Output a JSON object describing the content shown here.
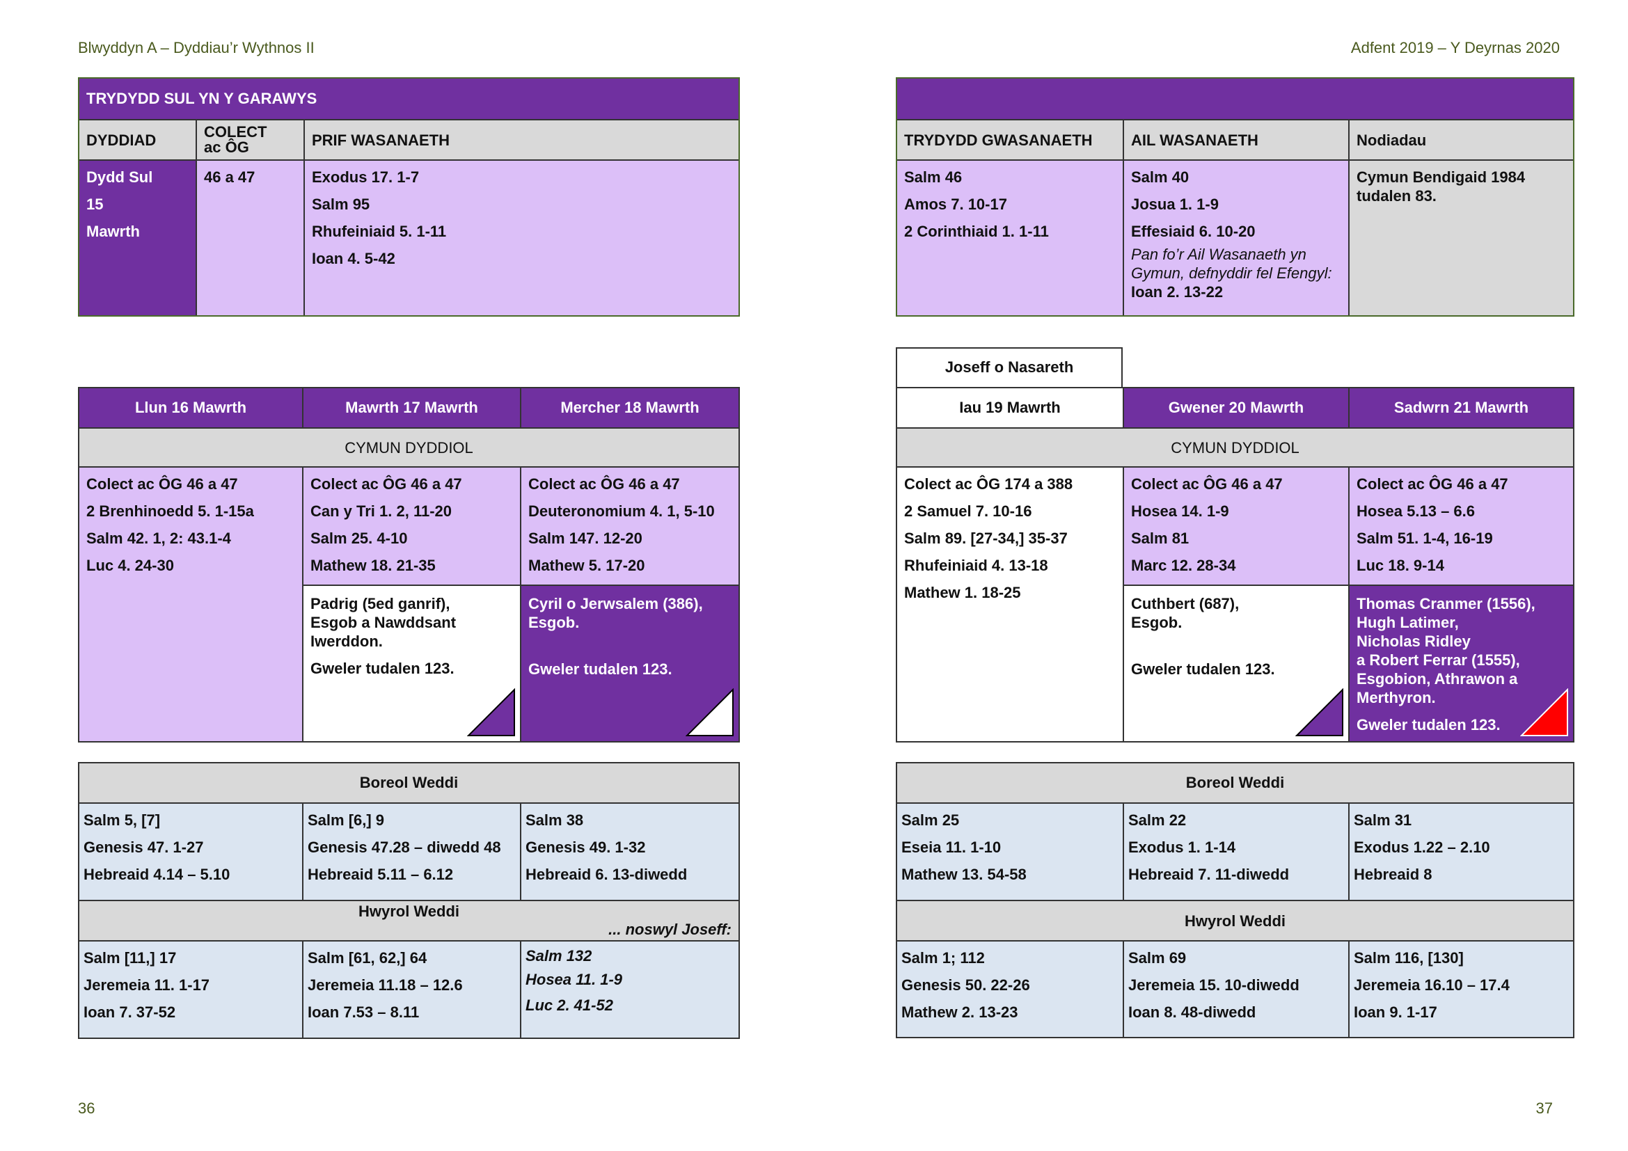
{
  "header": {
    "left": "Blwyddyn A – Dyddiau’r Wythnos II",
    "right": "Adfent 2019 – Y Deyrnas 2020"
  },
  "page_numbers": {
    "left": "36",
    "right": "37"
  },
  "colors": {
    "purple": "#7030a0",
    "lilac": "#dcbff8",
    "grey": "#d9d9d9",
    "blue": "#dbe5f1",
    "red": "#ff0000"
  },
  "sunday": {
    "title": "TRYDYDD SUL YN Y GARAWYS",
    "cols": {
      "day": "DYDDIAD",
      "collect_1": "COLECT",
      "collect_2": "ac ÔG",
      "main": "PRIF WASANAETH"
    },
    "day": [
      "Dydd Sul",
      "15",
      "Mawrth"
    ],
    "collect": "46 a 47",
    "main": [
      "Exodus 17. 1-7",
      "Salm 95",
      "Rhufeiniaid 5. 1-11",
      "Ioan 4. 5-42"
    ]
  },
  "sunday_right": {
    "cols": {
      "third": "TRYDYDD GWASANAETH",
      "second": "AIL WASANAETH",
      "notes": "Nodiadau"
    },
    "third": [
      "Salm 46",
      "Amos 7. 10-17",
      "2 Corinthiaid 1. 1-11"
    ],
    "second": [
      "Salm 40",
      "Josua 1. 1-9",
      "Effesiaid 6. 10-20"
    ],
    "second_note": [
      "Pan fo’r Ail Wasanaeth yn",
      "Gymun, defnyddir fel Efengyl:"
    ],
    "second_note_reading": "Ioan 2. 13-22",
    "notes": [
      "Cymun Bendigaid 1984",
      "tudalen 83."
    ]
  },
  "week_left": {
    "days": [
      "Llun 16 Mawrth",
      "Mawrth 17 Mawrth",
      "Mercher 18 Mawrth"
    ],
    "section": "CYMUN DYDDIOL",
    "readings": [
      [
        "Colect ac ÔG 46 a 47",
        "2 Brenhinoedd 5. 1-15a",
        "Salm 42. 1, 2: 43.1-4",
        "Luc 4. 24-30"
      ],
      [
        "Colect ac ÔG 46 a 47",
        "Can y Tri 1. 2, 11-20",
        "Salm 25. 4-10",
        "Mathew 18. 21-35"
      ],
      [
        "Colect ac ÔG 46 a 47",
        "Deuteronomium 4. 1, 5-10",
        "Salm 147. 12-20",
        "Mathew 5. 17-20"
      ]
    ],
    "commem_mawrth": [
      "Padrig (5ed ganrif),",
      "Esgob a Nawddsant",
      "Iwerddon."
    ],
    "commem_mawrth_see": "Gweler tudalen 123.",
    "commem_mercher": [
      "Cyril o Jerwsalem (386),",
      "Esgob."
    ],
    "commem_mercher_see": "Gweler tudalen 123."
  },
  "week_right": {
    "feast": "Joseff o Nasareth",
    "days": [
      "Iau 19 Mawrth",
      "Gwener 20 Mawrth",
      "Sadwrn 21 Mawrth"
    ],
    "section": "CYMUN DYDDIOL",
    "readings": [
      [
        "Colect ac ÔG 174 a 388",
        "2 Samuel 7. 10-16",
        "Salm 89. [27-34,] 35-37",
        "Rhufeiniaid 4. 13-18",
        "Mathew 1. 18-25"
      ],
      [
        "Colect ac ÔG 46 a 47",
        "Hosea 14. 1-9",
        "Salm 81",
        "Marc 12. 28-34"
      ],
      [
        "Colect ac ÔG 46 a 47",
        "Hosea 5.13 – 6.6",
        "Salm 51. 1-4, 16-19",
        "Luc 18. 9-14"
      ]
    ],
    "commem_gwener": [
      "Cuthbert (687),",
      "Esgob."
    ],
    "commem_gwener_see": "Gweler tudalen 123.",
    "commem_sadwrn": [
      "Thomas Cranmer (1556),",
      "Hugh Latimer,",
      "Nicholas Ridley",
      "a Robert Ferrar (1555),",
      "Esgobion, Athrawon a",
      "Merthyron."
    ],
    "commem_sadwrn_see": "Gweler tudalen 123."
  },
  "prayers_left": {
    "morning": "Boreol Weddi",
    "morning_cells": [
      [
        "Salm 5, [7]",
        "Genesis 47. 1-27",
        "Hebreaid 4.14 – 5.10"
      ],
      [
        "Salm [6,] 9",
        "Genesis 47.28 – diwedd 48",
        "Hebreaid 5.11 – 6.12"
      ],
      [
        "Salm 38",
        "Genesis 49. 1-32",
        "Hebreaid 6. 13-diwedd"
      ]
    ],
    "evening": "Hwyrol Weddi",
    "evening_note": "... noswyl Joseff:",
    "evening_cells": [
      [
        "Salm [11,] 17",
        "Jeremeia 11. 1-17",
        "Ioan 7. 37-52"
      ],
      [
        "Salm [61, 62,] 64",
        "Jeremeia 11.18 – 12.6",
        "Ioan 7.53 – 8.11"
      ],
      [
        "Salm 132",
        "Hosea 11. 1-9",
        "Luc 2. 41-52"
      ]
    ]
  },
  "prayers_right": {
    "morning": "Boreol Weddi",
    "morning_cells": [
      [
        "Salm 25",
        "Eseia 11. 1-10",
        "Mathew 13. 54-58"
      ],
      [
        "Salm 22",
        "Exodus 1. 1-14",
        "Hebreaid 7. 11-diwedd"
      ],
      [
        "Salm 31",
        "Exodus 1.22 – 2.10",
        "Hebreaid 8"
      ]
    ],
    "evening": "Hwyrol Weddi",
    "evening_cells": [
      [
        "Salm 1; 112",
        "Genesis 50. 22-26",
        "Mathew 2. 13-23"
      ],
      [
        "Salm 69",
        "Jeremeia 15. 10-diwedd",
        "Ioan 8. 48-diwedd"
      ],
      [
        "Salm 116, [130]",
        "Jeremeia 16.10 – 17.4",
        "Ioan 9. 1-17"
      ]
    ]
  }
}
